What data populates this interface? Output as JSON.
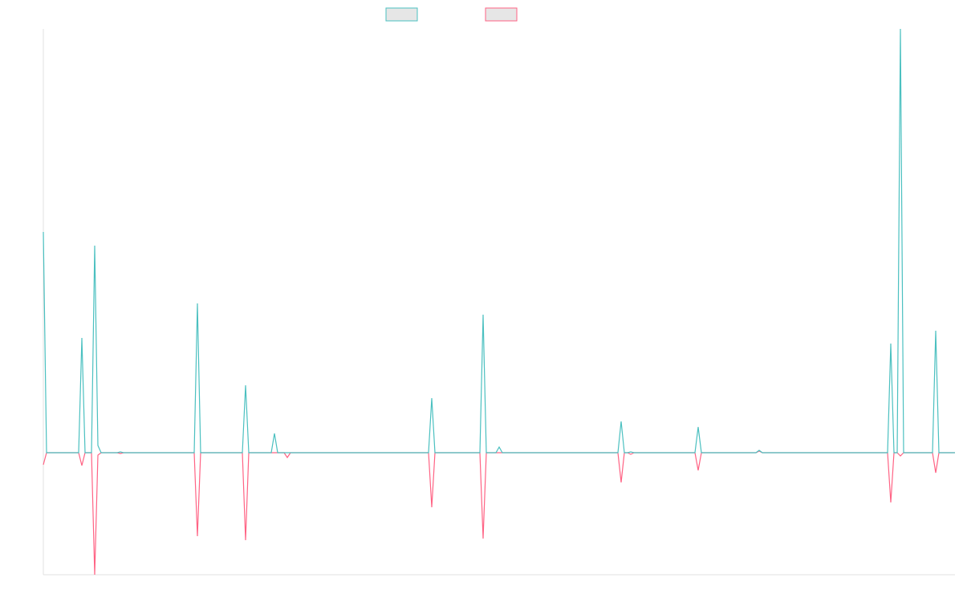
{
  "chart_data": {
    "type": "line",
    "ylim": [
      -152,
      528
    ],
    "series": [
      {
        "color": "#4bc0c0",
        "values": [
          275,
          0,
          0,
          0,
          0,
          0,
          0,
          0,
          0,
          0,
          0,
          0,
          143,
          0,
          0,
          0,
          258,
          9,
          0,
          0,
          0,
          0,
          0,
          0,
          1,
          0,
          0,
          0,
          0,
          0,
          0,
          0,
          0,
          0,
          0,
          0,
          0,
          0,
          0,
          0,
          0,
          0,
          0,
          0,
          0,
          0,
          0,
          0,
          186,
          0,
          0,
          0,
          0,
          0,
          0,
          0,
          0,
          0,
          0,
          0,
          0,
          0,
          0,
          84,
          0,
          0,
          0,
          0,
          0,
          0,
          0,
          0,
          24,
          0,
          0,
          0,
          0,
          0,
          0,
          0,
          0,
          0,
          0,
          0,
          0,
          0,
          0,
          0,
          0,
          0,
          0,
          0,
          0,
          0,
          0,
          0,
          0,
          0,
          0,
          0,
          0,
          0,
          0,
          0,
          0,
          0,
          0,
          0,
          0,
          0,
          0,
          0,
          0,
          0,
          0,
          0,
          0,
          0,
          0,
          0,
          0,
          68,
          0,
          0,
          0,
          0,
          0,
          0,
          0,
          0,
          0,
          0,
          0,
          0,
          0,
          0,
          0,
          172,
          0,
          0,
          0,
          0,
          7,
          0,
          0,
          0,
          0,
          0,
          0,
          0,
          0,
          0,
          0,
          0,
          0,
          0,
          0,
          0,
          0,
          0,
          0,
          0,
          0,
          0,
          0,
          0,
          0,
          0,
          0,
          0,
          0,
          0,
          0,
          0,
          0,
          0,
          0,
          0,
          0,
          0,
          39,
          0,
          0,
          1,
          0,
          0,
          0,
          0,
          0,
          0,
          0,
          0,
          0,
          0,
          0,
          0,
          0,
          0,
          0,
          0,
          0,
          0,
          0,
          0,
          32,
          0,
          0,
          0,
          0,
          0,
          0,
          0,
          0,
          0,
          0,
          0,
          0,
          0,
          0,
          0,
          0,
          0,
          0,
          3,
          0,
          0,
          0,
          0,
          0,
          0,
          0,
          0,
          0,
          0,
          0,
          0,
          0,
          0,
          0,
          0,
          0,
          0,
          0,
          0,
          0,
          0,
          0,
          0,
          0,
          0,
          0,
          0,
          0,
          0,
          0,
          0,
          0,
          0,
          0,
          0,
          0,
          0,
          0,
          0,
          136,
          0,
          0,
          528,
          0,
          0,
          0,
          0,
          0,
          0,
          0,
          0,
          0,
          0,
          152,
          0,
          0,
          0,
          0,
          0,
          0
        ]
      },
      {
        "color": "#ff6384",
        "values": [
          -15,
          0,
          0,
          0,
          0,
          0,
          0,
          0,
          0,
          0,
          0,
          0,
          -16,
          0,
          0,
          0,
          -152,
          -3,
          0,
          0,
          0,
          0,
          0,
          0,
          -1,
          0,
          0,
          0,
          0,
          0,
          0,
          0,
          0,
          0,
          0,
          0,
          0,
          0,
          0,
          0,
          0,
          0,
          0,
          0,
          0,
          0,
          0,
          0,
          -104,
          0,
          0,
          0,
          0,
          0,
          0,
          0,
          0,
          0,
          0,
          0,
          0,
          0,
          0,
          -109,
          0,
          0,
          0,
          0,
          0,
          0,
          0,
          0,
          0,
          0,
          0,
          0,
          -6,
          0,
          0,
          0,
          0,
          0,
          0,
          0,
          0,
          0,
          0,
          0,
          0,
          0,
          0,
          0,
          0,
          0,
          0,
          0,
          0,
          0,
          0,
          0,
          0,
          0,
          0,
          0,
          0,
          0,
          0,
          0,
          0,
          0,
          0,
          0,
          0,
          0,
          0,
          0,
          0,
          0,
          0,
          0,
          0,
          -68,
          0,
          0,
          0,
          0,
          0,
          0,
          0,
          0,
          0,
          0,
          0,
          0,
          0,
          0,
          0,
          -107,
          0,
          0,
          0,
          0,
          0,
          0,
          0,
          0,
          0,
          0,
          0,
          0,
          0,
          0,
          0,
          0,
          0,
          0,
          0,
          0,
          0,
          0,
          0,
          0,
          0,
          0,
          0,
          0,
          0,
          0,
          0,
          0,
          0,
          0,
          0,
          0,
          0,
          0,
          0,
          0,
          0,
          0,
          -37,
          0,
          0,
          -2,
          0,
          0,
          0,
          0,
          0,
          0,
          0,
          0,
          0,
          0,
          0,
          0,
          0,
          0,
          0,
          0,
          0,
          0,
          0,
          0,
          -22,
          0,
          0,
          0,
          0,
          0,
          0,
          0,
          0,
          0,
          0,
          0,
          0,
          0,
          0,
          0,
          0,
          0,
          0,
          2,
          0,
          0,
          0,
          0,
          0,
          0,
          0,
          0,
          0,
          0,
          0,
          0,
          0,
          0,
          0,
          0,
          0,
          0,
          0,
          0,
          0,
          0,
          0,
          0,
          0,
          0,
          0,
          0,
          0,
          0,
          0,
          0,
          0,
          0,
          0,
          0,
          0,
          0,
          0,
          0,
          -62,
          0,
          0,
          -4,
          0,
          0,
          0,
          0,
          0,
          0,
          0,
          0,
          0,
          0,
          -25,
          0,
          0,
          0,
          0,
          0,
          0
        ]
      }
    ]
  }
}
